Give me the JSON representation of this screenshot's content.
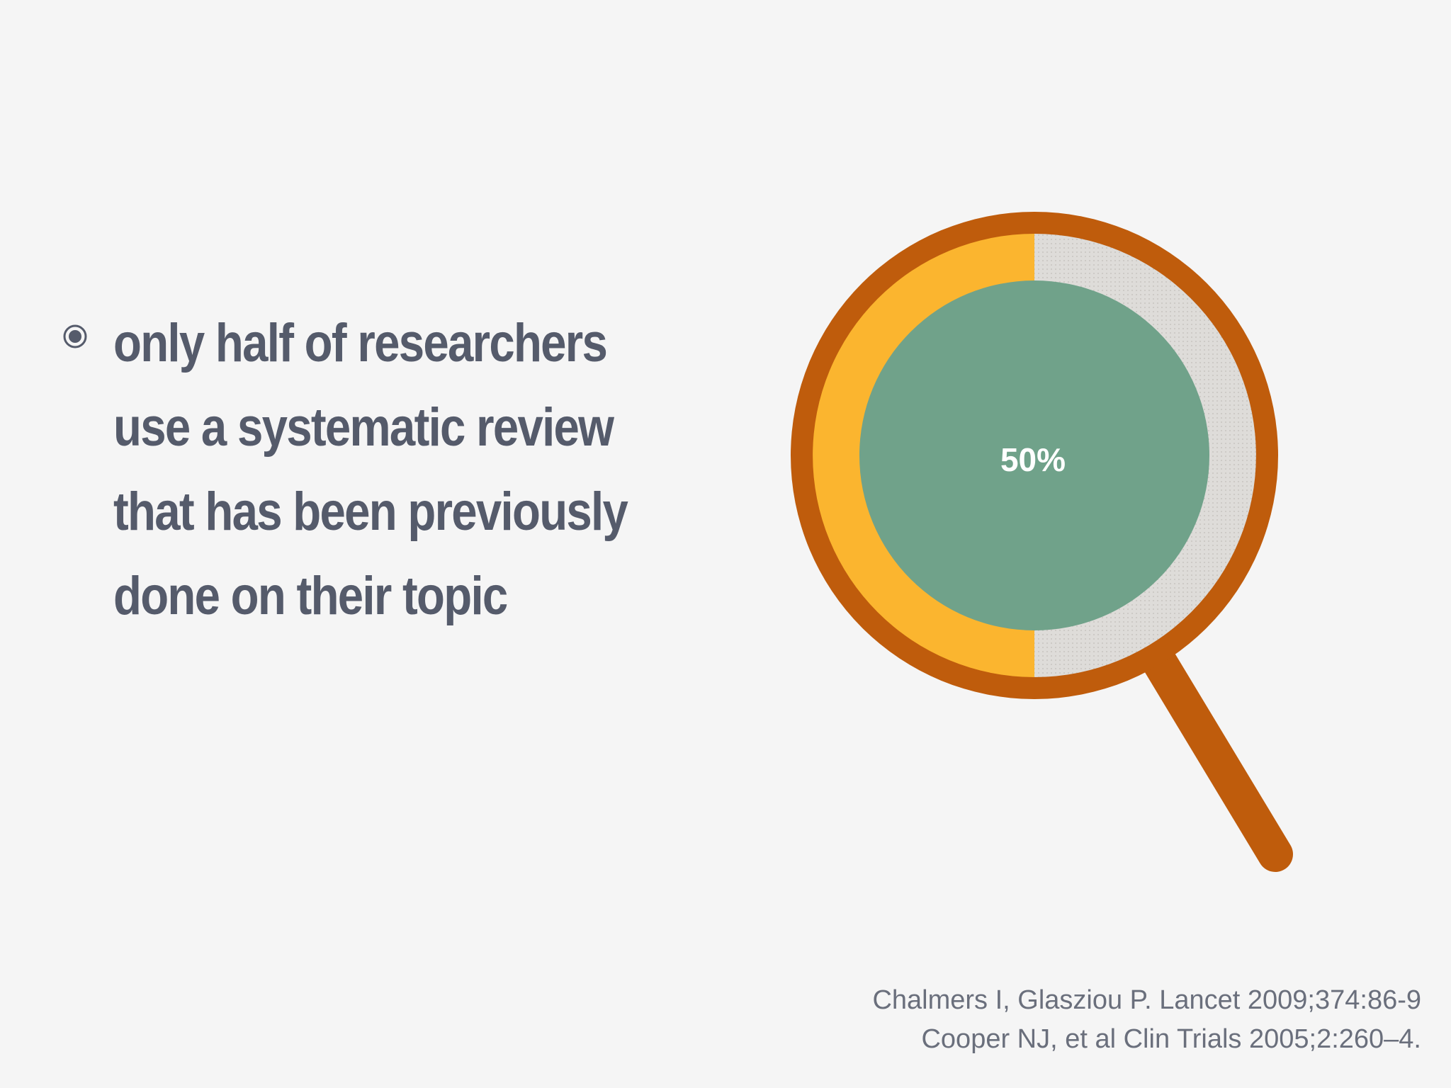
{
  "slide": {
    "bullet": {
      "icon": "radio-bullet-icon",
      "text": "only half of researchers use a systematic review that has been previously done on their topic"
    },
    "citations": [
      "Chalmers I, Glasziou P. Lancet 2009;374:86-9",
      "Cooper NJ,  et al Clin Trials 2005;2:260–4."
    ]
  },
  "chart_data": {
    "type": "pie",
    "style": "donut inside magnifying glass",
    "slices": [
      {
        "value": 50,
        "color": "#fbb52f"
      },
      {
        "value": 50,
        "color": "#dcdad7"
      }
    ],
    "center_label": "50%",
    "colors": {
      "frame": "#bf5c0c",
      "center": "#70a28a",
      "bullet": "#555b6b",
      "text": "#555b6b",
      "citation": "#6a6f7c"
    }
  }
}
